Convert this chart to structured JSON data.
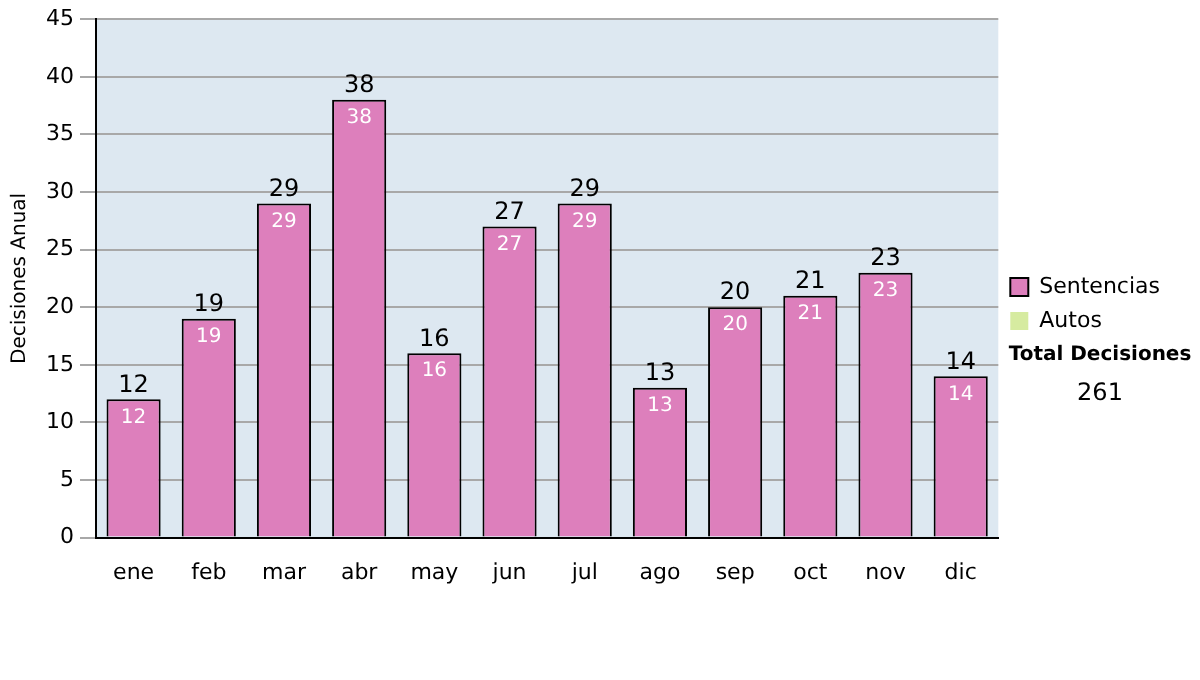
{
  "chart_data": {
    "type": "bar",
    "ylabel": "Decisiones Anual",
    "categories": [
      "ene",
      "feb",
      "mar",
      "abr",
      "may",
      "jun",
      "jul",
      "ago",
      "sep",
      "oct",
      "nov",
      "dic"
    ],
    "series": [
      {
        "name": "Sentencias",
        "color": "#dd7fbc",
        "values": [
          12,
          19,
          29,
          38,
          16,
          27,
          29,
          13,
          20,
          21,
          23,
          14
        ],
        "value_labels": [
          "12",
          "19",
          "29",
          "38",
          "16",
          "27",
          "29",
          "13",
          "20",
          "21",
          "23",
          "14"
        ]
      },
      {
        "name": "Autos",
        "color": "#d6eba0",
        "values": [
          0,
          0,
          0,
          0,
          0,
          0,
          0,
          0,
          0,
          0,
          0,
          0
        ]
      }
    ],
    "stacked": true,
    "totals": [
      "12",
      "19",
      "29",
      "38",
      "16",
      "27",
      "29",
      "13",
      "20",
      "21",
      "23",
      "14"
    ],
    "ylim": [
      0,
      45
    ],
    "yticks": [
      0,
      5,
      10,
      15,
      20,
      25,
      30,
      35,
      40,
      45
    ],
    "grid": "y",
    "legend": "right",
    "annotations": [
      "Total Decisiones",
      "261"
    ]
  }
}
